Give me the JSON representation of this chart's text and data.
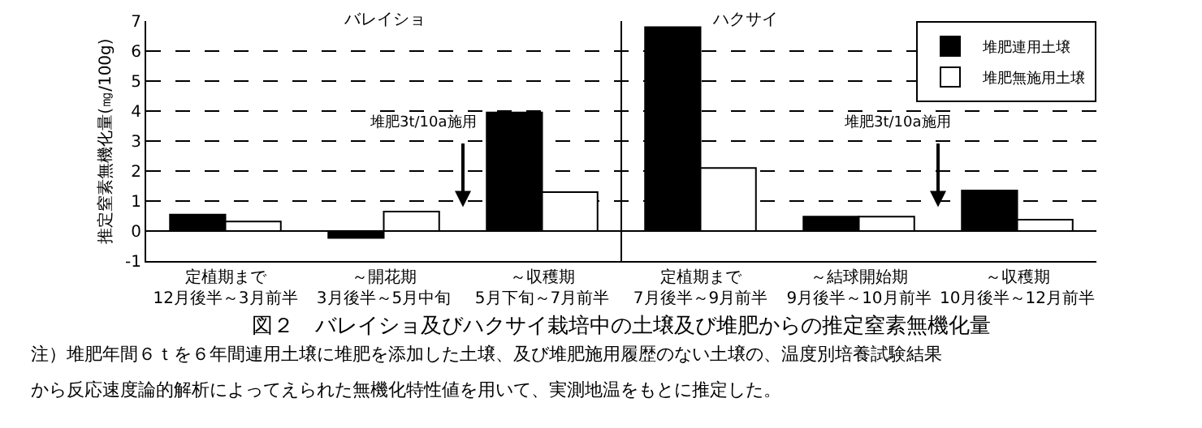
{
  "chart_data": {
    "type": "bar",
    "title": "図２　バレイショ及びハクサイ栽培中の土壌及び堆肥からの推定窒素無機化量",
    "ylabel": "推定窒素無機化量(㎎/100g)",
    "categories": [
      "定植期まで\n12月後半～3月前半",
      "～開花期\n3月後半～5月中旬",
      "～収穫期\n5月下旬～7月前半",
      "定植期まで\n7月後半～9月前半",
      "～結球開始期\n9月後半～10月前半",
      "～収穫期\n10月後半～12月前半"
    ],
    "series": [
      {
        "name": "堆肥連用土壌",
        "color": "#000000",
        "values": [
          0.55,
          -0.23,
          3.95,
          6.8,
          0.48,
          1.35
        ]
      },
      {
        "name": "堆肥無施用土壌",
        "color": "#ffffff",
        "values": [
          0.32,
          0.65,
          1.3,
          2.1,
          0.48,
          0.38
        ]
      }
    ],
    "ylim": [
      -1,
      7
    ],
    "yticks": [
      -1,
      0,
      1,
      2,
      3,
      4,
      5,
      6,
      7
    ],
    "grid": "y",
    "legend": "top right",
    "annotations": [
      "バレイショ",
      "ハクサイ",
      "堆肥3t/10a施用",
      "堆肥3t/10a施用",
      "注）堆肥年間６ｔを６年間連用土壌に堆肥を添加した土壌、及び堆肥施用履歴のない土壌の、温度別培養試験結果",
      "から反応速度論的解析によってえられた無機化特性値を用いて、実測地温をもとに推定した。"
    ]
  }
}
